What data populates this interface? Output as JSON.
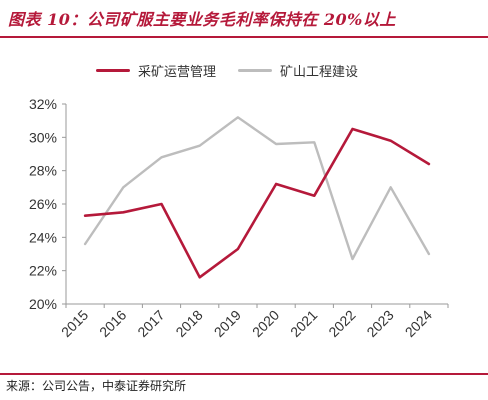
{
  "title": "图表 10：公司矿服主要业务毛利率保持在 20%以上",
  "source": "来源：公司公告，中泰证券研究所",
  "chart_data": {
    "type": "line",
    "x": [
      "2015",
      "2016",
      "2017",
      "2018",
      "2019",
      "2020",
      "2021",
      "2022",
      "2023",
      "2024"
    ],
    "series": [
      {
        "name": "采矿运营管理",
        "color": "#b5193a",
        "values": [
          25.3,
          25.5,
          26.0,
          21.6,
          23.3,
          27.2,
          26.5,
          30.5,
          29.8,
          28.4
        ]
      },
      {
        "name": "矿山工程建设",
        "color": "#bdbdbd",
        "values": [
          23.6,
          27.0,
          28.8,
          29.5,
          31.2,
          29.6,
          29.7,
          22.7,
          27.0,
          23.0
        ]
      }
    ],
    "yticks": [
      "20%",
      "22%",
      "24%",
      "26%",
      "28%",
      "30%",
      "32%"
    ],
    "ylim": [
      20,
      32
    ],
    "xlabel": "",
    "ylabel": "",
    "legend_position": "top",
    "grid": false
  }
}
